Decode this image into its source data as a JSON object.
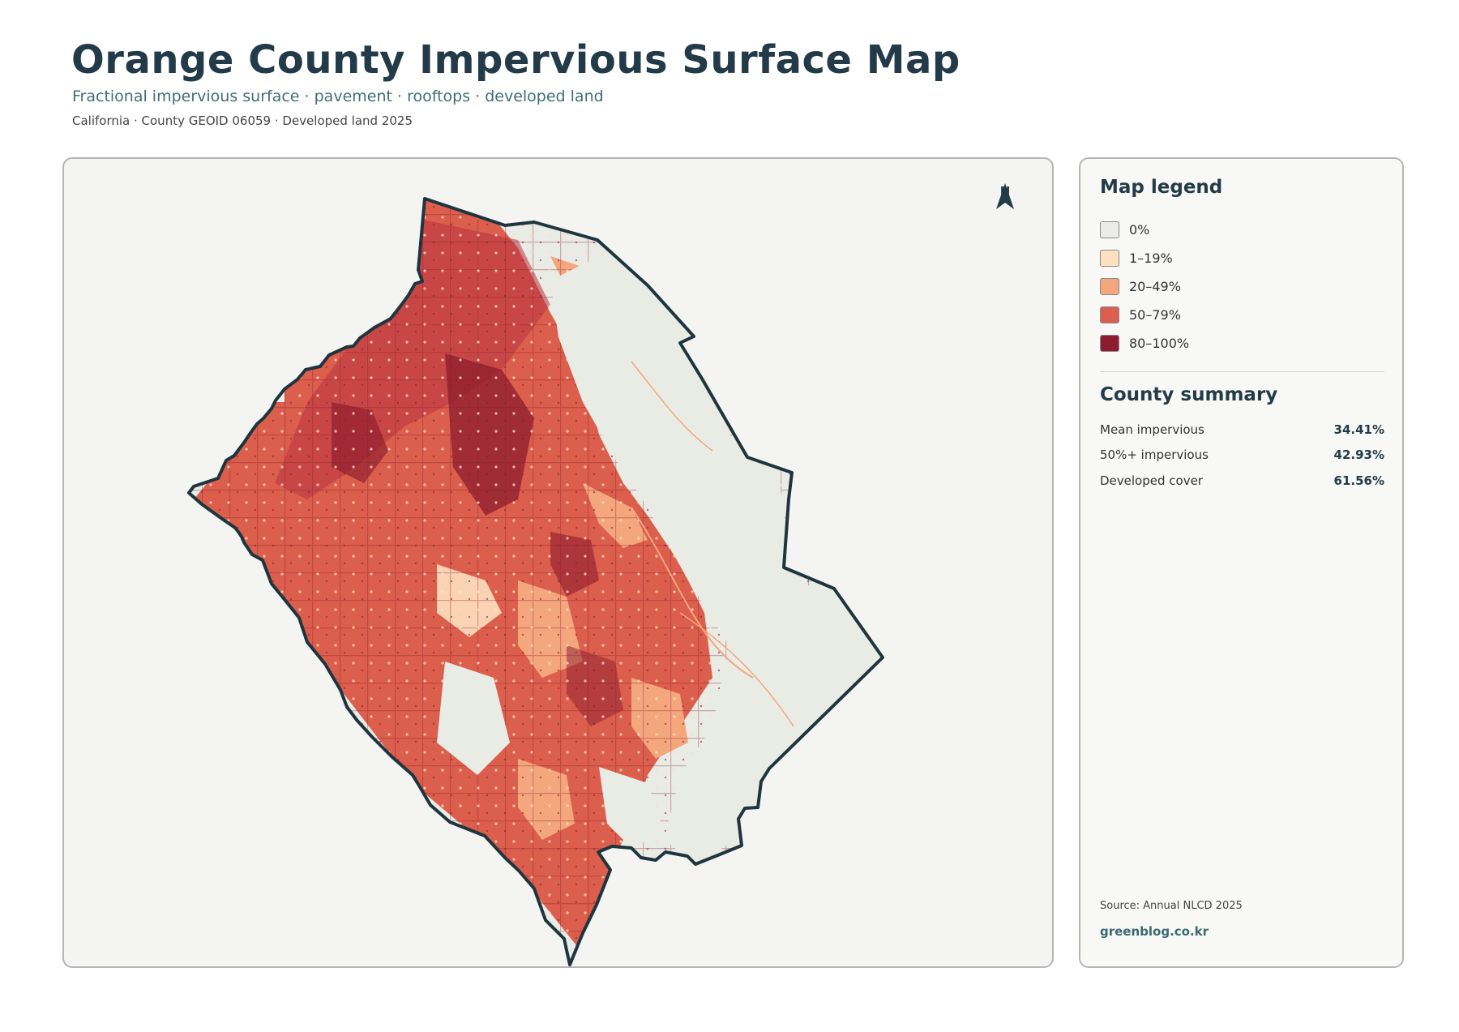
{
  "header": {
    "title": "Orange County Impervious Surface Map",
    "subtitle": "Fractional impervious surface · pavement · rooftops · developed land",
    "meta": "California · County GEOID 06059 · Developed land 2025"
  },
  "map": {
    "north_label": "N",
    "colors": {
      "boundary": "#1f353d",
      "background": "#f4f4f2"
    }
  },
  "legend": {
    "title": "Map legend",
    "items": [
      {
        "label": "0%",
        "color": "#ebebe7"
      },
      {
        "label": "1–19%",
        "color": "#fde0c0"
      },
      {
        "label": "20–49%",
        "color": "#f4a67d"
      },
      {
        "label": "50–79%",
        "color": "#dc5e4c"
      },
      {
        "label": "80–100%",
        "color": "#8c1c2e"
      }
    ]
  },
  "summary": {
    "title": "County summary",
    "rows": [
      {
        "label": "Mean impervious",
        "value": "34.41%"
      },
      {
        "label": "50%+ impervious",
        "value": "42.93%"
      },
      {
        "label": "Developed cover",
        "value": "61.56%"
      }
    ]
  },
  "footer": {
    "source": "Source: Annual NLCD 2025",
    "site": "greenblog.co.kr"
  }
}
